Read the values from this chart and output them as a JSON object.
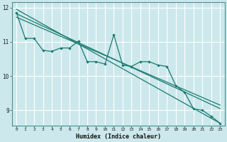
{
  "xlabel": "Humidex (Indice chaleur)",
  "bg_color": "#cce8ec",
  "line_color": "#1a7a6e",
  "grid_color": "#ffffff",
  "xlim": [
    -0.5,
    23.5
  ],
  "ylim": [
    8.55,
    12.15
  ],
  "yticks": [
    9,
    10,
    11,
    12
  ],
  "xticks": [
    0,
    1,
    2,
    3,
    4,
    5,
    6,
    7,
    8,
    9,
    10,
    11,
    12,
    13,
    14,
    15,
    16,
    17,
    18,
    19,
    20,
    21,
    22,
    23
  ],
  "series_x": [
    0,
    1,
    2,
    3,
    4,
    5,
    6,
    7,
    8,
    9,
    10,
    11,
    12,
    13,
    14,
    15,
    16,
    17,
    18,
    19,
    20,
    21,
    22,
    23
  ],
  "series_y": [
    11.85,
    11.1,
    11.1,
    10.75,
    10.72,
    10.82,
    10.82,
    11.02,
    10.42,
    10.42,
    10.35,
    11.2,
    10.32,
    10.28,
    10.42,
    10.42,
    10.32,
    10.28,
    9.72,
    9.52,
    9.04,
    9.0,
    8.82,
    8.62
  ],
  "trend1_x": [
    0,
    23
  ],
  "trend1_y": [
    11.95,
    8.62
  ],
  "trend2_x": [
    0,
    23
  ],
  "trend2_y": [
    11.82,
    9.05
  ],
  "trend3_x": [
    0,
    23
  ],
  "trend3_y": [
    11.72,
    9.15
  ]
}
